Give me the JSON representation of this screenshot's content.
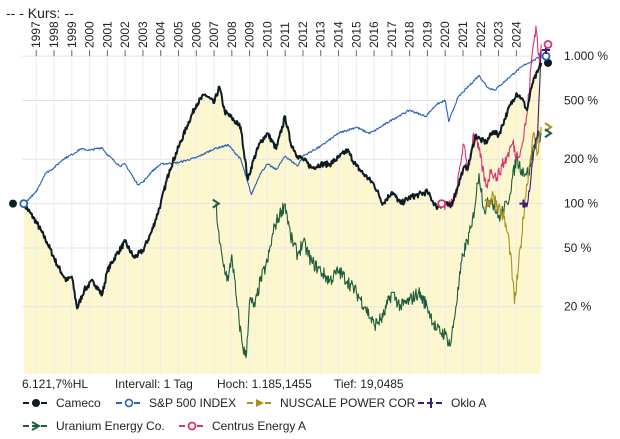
{
  "header": {
    "title": "--  - Kurs: --"
  },
  "stats": {
    "change": "6.121,7%HL",
    "interval": "Intervall: 1 Tag",
    "high": "Hoch: 1.185,1455",
    "low": "Tief: 19,0485"
  },
  "chart_data": {
    "type": "line",
    "scale": "log",
    "ylim": [
      7,
      1600
    ],
    "xlim": [
      1996.2,
      2025.5
    ],
    "x_ticks": [
      "1997",
      "1998",
      "1999",
      "2000",
      "2001",
      "2002",
      "2003",
      "2004",
      "2005",
      "2006",
      "2007",
      "2008",
      "2009",
      "2010",
      "2011",
      "2012",
      "2013",
      "2014",
      "2015",
      "2016",
      "2017",
      "2018",
      "2019",
      "2020",
      "2021",
      "2022",
      "2023",
      "2024"
    ],
    "y_ticks": [
      {
        "value": 1000,
        "label": "1.000 %"
      },
      {
        "value": 500,
        "label": "500 %"
      },
      {
        "value": 200,
        "label": "200 %"
      },
      {
        "value": 100,
        "label": "100 %"
      },
      {
        "value": 50,
        "label": "50 %"
      },
      {
        "value": 20,
        "label": "20 %"
      }
    ],
    "series": [
      {
        "name": "Cameco",
        "color": "#0d1b22",
        "marker": "dot",
        "fill": "#fdf7cf",
        "points": [
          [
            1996.3,
            100
          ],
          [
            1997.0,
            75
          ],
          [
            1997.6,
            55
          ],
          [
            1998.2,
            38
          ],
          [
            1998.7,
            30
          ],
          [
            1999.0,
            32
          ],
          [
            1999.3,
            19.5
          ],
          [
            1999.7,
            26
          ],
          [
            2000.2,
            30
          ],
          [
            2000.7,
            24
          ],
          [
            2001.0,
            35
          ],
          [
            2001.5,
            45
          ],
          [
            2002.0,
            55
          ],
          [
            2002.5,
            43
          ],
          [
            2003.0,
            48
          ],
          [
            2003.5,
            65
          ],
          [
            2004.0,
            100
          ],
          [
            2004.5,
            170
          ],
          [
            2005.0,
            240
          ],
          [
            2005.5,
            340
          ],
          [
            2006.0,
            470
          ],
          [
            2006.5,
            550
          ],
          [
            2007.0,
            480
          ],
          [
            2007.3,
            620
          ],
          [
            2007.6,
            420
          ],
          [
            2008.0,
            380
          ],
          [
            2008.5,
            330
          ],
          [
            2008.9,
            145
          ],
          [
            2009.2,
            195
          ],
          [
            2009.6,
            260
          ],
          [
            2010.0,
            300
          ],
          [
            2010.5,
            235
          ],
          [
            2011.0,
            390
          ],
          [
            2011.3,
            260
          ],
          [
            2011.7,
            210
          ],
          [
            2012.0,
            200
          ],
          [
            2012.5,
            175
          ],
          [
            2013.0,
            185
          ],
          [
            2013.5,
            185
          ],
          [
            2014.0,
            205
          ],
          [
            2014.5,
            230
          ],
          [
            2015.0,
            180
          ],
          [
            2015.5,
            155
          ],
          [
            2016.0,
            135
          ],
          [
            2016.5,
            100
          ],
          [
            2017.0,
            120
          ],
          [
            2017.5,
            100
          ],
          [
            2018.0,
            110
          ],
          [
            2018.5,
            115
          ],
          [
            2019.0,
            120
          ],
          [
            2019.5,
            95
          ],
          [
            2020.0,
            100
          ],
          [
            2020.3,
            95
          ],
          [
            2020.7,
            130
          ],
          [
            2021.0,
            170
          ],
          [
            2021.3,
            180
          ],
          [
            2021.7,
            290
          ],
          [
            2022.0,
            270
          ],
          [
            2022.3,
            260
          ],
          [
            2022.7,
            310
          ],
          [
            2023.0,
            290
          ],
          [
            2023.5,
            420
          ],
          [
            2024.0,
            560
          ],
          [
            2024.3,
            520
          ],
          [
            2024.6,
            430
          ],
          [
            2024.9,
            650
          ],
          [
            2025.2,
            780
          ],
          [
            2025.4,
            900
          ]
        ]
      },
      {
        "name": "S&P 500 INDEX",
        "color": "#2962b8",
        "marker": "circle",
        "fill": "none",
        "points": [
          [
            1996.3,
            100
          ],
          [
            1997.0,
            120
          ],
          [
            1997.5,
            160
          ],
          [
            1998.0,
            175
          ],
          [
            1998.5,
            200
          ],
          [
            1999.0,
            215
          ],
          [
            1999.5,
            235
          ],
          [
            2000.0,
            230
          ],
          [
            2000.7,
            240
          ],
          [
            2001.0,
            215
          ],
          [
            2001.7,
            180
          ],
          [
            2002.0,
            185
          ],
          [
            2002.7,
            135
          ],
          [
            2003.0,
            140
          ],
          [
            2003.5,
            165
          ],
          [
            2004.0,
            185
          ],
          [
            2005.0,
            190
          ],
          [
            2006.0,
            205
          ],
          [
            2007.0,
            235
          ],
          [
            2007.8,
            250
          ],
          [
            2008.5,
            200
          ],
          [
            2009.1,
            115
          ],
          [
            2009.6,
            160
          ],
          [
            2010.0,
            185
          ],
          [
            2010.5,
            170
          ],
          [
            2011.0,
            210
          ],
          [
            2011.7,
            180
          ],
          [
            2012.0,
            210
          ],
          [
            2013.0,
            245
          ],
          [
            2014.0,
            300
          ],
          [
            2015.0,
            330
          ],
          [
            2015.7,
            300
          ],
          [
            2016.0,
            310
          ],
          [
            2017.0,
            370
          ],
          [
            2018.0,
            430
          ],
          [
            2018.9,
            390
          ],
          [
            2019.5,
            470
          ],
          [
            2020.0,
            500
          ],
          [
            2020.2,
            360
          ],
          [
            2020.7,
            520
          ],
          [
            2021.0,
            570
          ],
          [
            2021.9,
            740
          ],
          [
            2022.4,
            610
          ],
          [
            2022.8,
            590
          ],
          [
            2023.0,
            620
          ],
          [
            2023.5,
            700
          ],
          [
            2024.0,
            790
          ],
          [
            2024.5,
            880
          ],
          [
            2025.0,
            940
          ],
          [
            2025.4,
            1000
          ]
        ]
      },
      {
        "name": "NUSCALE POWER COR",
        "color": "#a89020",
        "marker": "arrow-right",
        "fill": "none",
        "points": [
          [
            2022.4,
            100
          ],
          [
            2022.7,
            115
          ],
          [
            2023.0,
            95
          ],
          [
            2023.3,
            80
          ],
          [
            2023.6,
            55
          ],
          [
            2023.8,
            30
          ],
          [
            2023.9,
            21
          ],
          [
            2024.1,
            35
          ],
          [
            2024.3,
            60
          ],
          [
            2024.5,
            110
          ],
          [
            2024.8,
            210
          ],
          [
            2025.0,
            300
          ],
          [
            2025.2,
            220
          ],
          [
            2025.4,
            330
          ]
        ]
      },
      {
        "name": "Oklo A",
        "color": "#3d1a78",
        "marker": "plus",
        "fill": "none",
        "points": [
          [
            2024.4,
            100
          ],
          [
            2024.6,
            95
          ],
          [
            2024.8,
            140
          ],
          [
            2025.0,
            230
          ],
          [
            2025.2,
            310
          ],
          [
            2025.4,
            1100
          ]
        ]
      },
      {
        "name": "Uranium Energy Co.",
        "color": "#1e5e3a",
        "marker": "arrow-right",
        "fill": "none",
        "points": [
          [
            2007.1,
            100
          ],
          [
            2007.3,
            55
          ],
          [
            2007.5,
            40
          ],
          [
            2007.8,
            30
          ],
          [
            2008.0,
            45
          ],
          [
            2008.3,
            20
          ],
          [
            2008.6,
            11
          ],
          [
            2008.8,
            9
          ],
          [
            2009.0,
            22
          ],
          [
            2009.3,
            20
          ],
          [
            2009.6,
            30
          ],
          [
            2010.0,
            40
          ],
          [
            2010.4,
            70
          ],
          [
            2010.8,
            90
          ],
          [
            2011.0,
            100
          ],
          [
            2011.3,
            60
          ],
          [
            2011.7,
            45
          ],
          [
            2012.0,
            55
          ],
          [
            2012.5,
            40
          ],
          [
            2013.0,
            35
          ],
          [
            2013.5,
            30
          ],
          [
            2014.0,
            35
          ],
          [
            2014.5,
            30
          ],
          [
            2015.0,
            25
          ],
          [
            2015.5,
            20
          ],
          [
            2016.0,
            15
          ],
          [
            2016.5,
            17
          ],
          [
            2017.0,
            25
          ],
          [
            2017.5,
            20
          ],
          [
            2018.0,
            22
          ],
          [
            2018.5,
            25
          ],
          [
            2019.0,
            20
          ],
          [
            2019.5,
            14
          ],
          [
            2020.0,
            13
          ],
          [
            2020.3,
            11
          ],
          [
            2020.6,
            20
          ],
          [
            2021.0,
            45
          ],
          [
            2021.5,
            70
          ],
          [
            2021.9,
            160
          ],
          [
            2022.2,
            90
          ],
          [
            2022.6,
            110
          ],
          [
            2023.0,
            80
          ],
          [
            2023.5,
            100
          ],
          [
            2024.0,
            200
          ],
          [
            2024.3,
            170
          ],
          [
            2024.7,
            160
          ],
          [
            2025.0,
            250
          ],
          [
            2025.4,
            300
          ]
        ]
      },
      {
        "name": "Centrus Energy A",
        "color": "#d8356e",
        "marker": "circle",
        "fill": "none",
        "points": [
          [
            2019.8,
            100
          ],
          [
            2020.2,
            95
          ],
          [
            2020.6,
            110
          ],
          [
            2021.0,
            250
          ],
          [
            2021.3,
            170
          ],
          [
            2021.6,
            300
          ],
          [
            2021.9,
            230
          ],
          [
            2022.3,
            130
          ],
          [
            2022.6,
            170
          ],
          [
            2022.9,
            150
          ],
          [
            2023.2,
            180
          ],
          [
            2023.5,
            210
          ],
          [
            2023.8,
            260
          ],
          [
            2024.0,
            210
          ],
          [
            2024.3,
            240
          ],
          [
            2024.6,
            400
          ],
          [
            2024.9,
            1050
          ],
          [
            2025.1,
            1600
          ],
          [
            2025.3,
            900
          ],
          [
            2025.4,
            1200
          ]
        ]
      }
    ]
  }
}
